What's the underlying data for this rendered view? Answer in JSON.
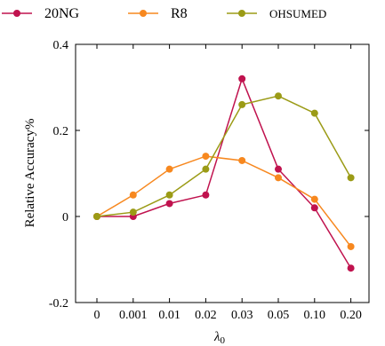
{
  "chart_data": {
    "type": "line",
    "title": "",
    "xlabel": "λ",
    "xlabel_sub": "0",
    "ylabel": "Relative Accuracy%",
    "categories": [
      "0",
      "0.001",
      "0.01",
      "0.02",
      "0.03",
      "0.05",
      "0.10",
      "0.20"
    ],
    "y_ticks": [
      {
        "value": 0.4,
        "label": "0.4"
      },
      {
        "value": 0.2,
        "label": "0.2"
      },
      {
        "value": 0,
        "label": "0"
      },
      {
        "value": -0.2,
        "label": "-0.2"
      }
    ],
    "ylim": [
      -0.2,
      0.4
    ],
    "grid": false,
    "legend_position": "top",
    "series": [
      {
        "name": "20NG",
        "color": "#c0124e",
        "values": [
          0,
          0,
          0.03,
          0.05,
          0.32,
          0.11,
          0.02,
          -0.12
        ]
      },
      {
        "name": "R8",
        "color": "#f7881f",
        "values": [
          0,
          0.05,
          0.11,
          0.14,
          0.13,
          0.09,
          0.04,
          -0.07
        ]
      },
      {
        "name": "OHSUMED",
        "color": "#9b9b16",
        "values": [
          0,
          0.01,
          0.05,
          0.11,
          0.26,
          0.28,
          0.24,
          0.09
        ]
      }
    ]
  }
}
